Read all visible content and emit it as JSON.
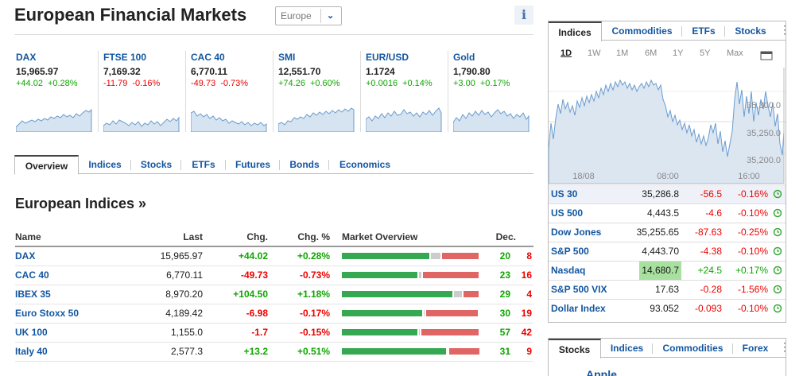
{
  "header": {
    "title": "European Financial Markets",
    "region_select": "Europe",
    "info_icon": "info-icon"
  },
  "tickers": [
    {
      "name": "DAX",
      "price": "15,965.97",
      "change": "+44.02",
      "pct": "+0.28%",
      "dir": "up"
    },
    {
      "name": "FTSE 100",
      "price": "7,169.32",
      "change": "-11.79",
      "pct": "-0.16%",
      "dir": "down"
    },
    {
      "name": "CAC 40",
      "price": "6,770.11",
      "change": "-49.73",
      "pct": "-0.73%",
      "dir": "down"
    },
    {
      "name": "SMI",
      "price": "12,551.70",
      "change": "+74.26",
      "pct": "+0.60%",
      "dir": "up"
    },
    {
      "name": "EUR/USD",
      "price": "1.1724",
      "change": "+0.0016",
      "pct": "+0.14%",
      "dir": "up"
    },
    {
      "name": "Gold",
      "price": "1,790.80",
      "change": "+3.00",
      "pct": "+0.17%",
      "dir": "up"
    }
  ],
  "main_tabs": [
    "Overview",
    "Indices",
    "Stocks",
    "ETFs",
    "Futures",
    "Bonds",
    "Economics"
  ],
  "section_title": "European Indices »",
  "table": {
    "headers": {
      "name": "Name",
      "last": "Last",
      "chg": "Chg.",
      "pct": "Chg. %",
      "overview": "Market Overview",
      "dec": "Dec."
    },
    "rows": [
      {
        "name": "DAX",
        "last": "15,965.97",
        "chg": "+44.02",
        "pct": "+0.28%",
        "up": "20",
        "down": "8",
        "dir": "up",
        "bar": [
          0.64,
          0.08,
          0.28
        ]
      },
      {
        "name": "CAC 40",
        "last": "6,770.11",
        "chg": "-49.73",
        "pct": "-0.73%",
        "up": "23",
        "down": "16",
        "dir": "down",
        "bar": [
          0.55,
          0.03,
          0.42
        ]
      },
      {
        "name": "IBEX 35",
        "last": "8,970.20",
        "chg": "+104.50",
        "pct": "+1.18%",
        "up": "29",
        "down": "4",
        "dir": "up",
        "bar": [
          0.81,
          0.07,
          0.12
        ]
      },
      {
        "name": "Euro Stoxx 50",
        "last": "4,189.42",
        "chg": "-6.98",
        "pct": "-0.17%",
        "up": "30",
        "down": "19",
        "dir": "down",
        "bar": [
          0.59,
          0.02,
          0.39
        ]
      },
      {
        "name": "UK 100",
        "last": "1,155.0",
        "chg": "-1.7",
        "pct": "-0.15%",
        "up": "57",
        "down": "42",
        "dir": "down",
        "bar": [
          0.55,
          0.02,
          0.43
        ]
      },
      {
        "name": "Italy 40",
        "last": "2,577.3",
        "chg": "+13.2",
        "pct": "+0.51%",
        "up": "31",
        "down": "9",
        "dir": "up",
        "bar": [
          0.76,
          0.01,
          0.23
        ]
      }
    ]
  },
  "right_panel": {
    "tabs": [
      "Indices",
      "Commodities",
      "ETFs",
      "Stocks"
    ],
    "ranges": [
      "1D",
      "1W",
      "1M",
      "6M",
      "1Y",
      "5Y",
      "Max"
    ],
    "active_range": "1D",
    "chart_ylabels": [
      "35,300.0",
      "35,250.0",
      "35,200.0"
    ],
    "chart_xlabels": [
      "18/08",
      "08:00",
      "16:00"
    ],
    "quotes": [
      {
        "name": "US 30",
        "last": "35,286.8",
        "chg": "-56.5",
        "pct": "-0.16%",
        "dir": "down"
      },
      {
        "name": "US 500",
        "last": "4,443.5",
        "chg": "-4.6",
        "pct": "-0.10%",
        "dir": "down"
      },
      {
        "name": "Dow Jones",
        "last": "35,255.65",
        "chg": "-87.63",
        "pct": "-0.25%",
        "dir": "down"
      },
      {
        "name": "S&P 500",
        "last": "4,443.70",
        "chg": "-4.38",
        "pct": "-0.10%",
        "dir": "down"
      },
      {
        "name": "Nasdaq",
        "last": "14,680.7",
        "chg": "+24.5",
        "pct": "+0.17%",
        "dir": "up"
      },
      {
        "name": "S&P 500 VIX",
        "last": "17.63",
        "chg": "-0.28",
        "pct": "-1.56%",
        "dir": "down"
      },
      {
        "name": "Dollar Index",
        "last": "93.052",
        "chg": "-0.093",
        "pct": "-0.10%",
        "dir": "down"
      }
    ]
  },
  "bottom_panel": {
    "tabs": [
      "Stocks",
      "Indices",
      "Commodities",
      "Forex"
    ],
    "peek_item": "Apple"
  },
  "colors": {
    "up": "#0ea600",
    "down": "#ff0000",
    "link": "#1256a0",
    "bar_up": "#36a852",
    "bar_neutral": "#cccccc",
    "bar_down": "#e06666"
  }
}
